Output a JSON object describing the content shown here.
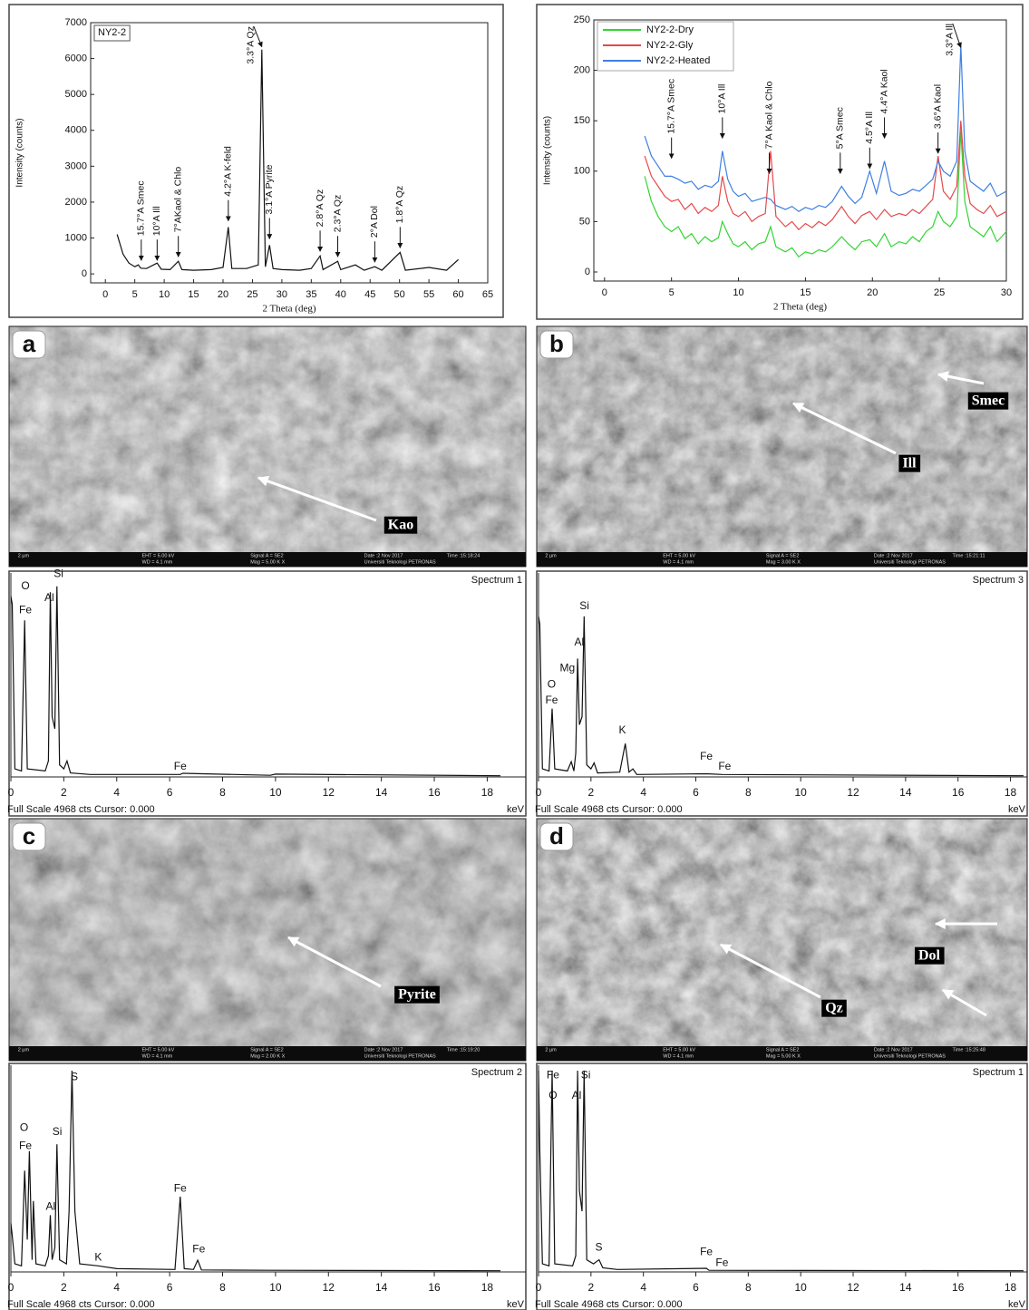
{
  "chart_data": [
    {
      "type": "line",
      "ylabel": "Intensity (counts)",
      "xlabel": "2 Theta (deg)",
      "xlim": [
        -2.5,
        65
      ],
      "ylim": [
        -250,
        7000
      ],
      "xticks": [
        0,
        5,
        10,
        15,
        20,
        25,
        30,
        35,
        40,
        45,
        50,
        55,
        60,
        65
      ],
      "yticks": [
        0,
        1000,
        2000,
        3000,
        4000,
        5000,
        6000,
        7000
      ],
      "x": [
        2,
        3,
        4,
        5,
        5.6,
        6,
        7,
        8.8,
        9.5,
        11,
        12.4,
        13,
        15,
        18,
        20,
        20.9,
        21.5,
        24,
        26,
        26.6,
        27.2,
        27.9,
        28.5,
        30,
        33,
        35,
        36.5,
        37,
        39.5,
        40,
        42.5,
        44,
        45.8,
        47,
        50.1,
        51,
        55,
        58,
        60
      ],
      "series": [
        {
          "name": "NY2-2",
          "color": "#111111",
          "values": [
            1100,
            550,
            300,
            200,
            250,
            160,
            150,
            300,
            130,
            120,
            350,
            120,
            100,
            120,
            180,
            1300,
            150,
            150,
            250,
            6250,
            200,
            800,
            150,
            120,
            100,
            150,
            500,
            120,
            350,
            120,
            250,
            100,
            200,
            100,
            600,
            100,
            180,
            100,
            400
          ]
        }
      ],
      "annotations": [
        {
          "text": "15.7°A Smec",
          "x": 6.1,
          "y": 300
        },
        {
          "text": "10°A Ill",
          "x": 8.8,
          "y": 300
        },
        {
          "text": "7°AKaol & Chlo",
          "x": 12.4,
          "y": 400
        },
        {
          "text": "4.2°A K-feld",
          "x": 20.9,
          "y": 1400
        },
        {
          "text": "3.3°A Qz",
          "x": 26.6,
          "y": 6250
        },
        {
          "text": "3.1°A Pyrite",
          "x": 27.9,
          "y": 900
        },
        {
          "text": "2.8°A Qz",
          "x": 36.5,
          "y": 550
        },
        {
          "text": "2.3°A Qz",
          "x": 39.5,
          "y": 400
        },
        {
          "text": "2°A Dol",
          "x": 45.8,
          "y": 250
        },
        {
          "text": "1.8°A Qz",
          "x": 50.1,
          "y": 650
        }
      ]
    },
    {
      "type": "line",
      "ylabel": "Intensity (counts)",
      "xlabel": "2 Theta (deg)",
      "xlim": [
        -0.8,
        30
      ],
      "ylim": [
        -9,
        250
      ],
      "xticks": [
        0,
        5,
        10,
        15,
        20,
        25,
        30
      ],
      "yticks": [
        0,
        50,
        100,
        150,
        200,
        250
      ],
      "x": [
        3,
        3.5,
        4,
        4.5,
        5,
        5.5,
        6,
        6.5,
        7,
        7.5,
        8,
        8.5,
        8.8,
        9.2,
        9.6,
        10,
        10.5,
        11,
        11.5,
        12,
        12.4,
        12.8,
        13.5,
        14,
        14.5,
        15,
        15.5,
        16,
        16.5,
        17,
        17.7,
        18.2,
        18.7,
        19.2,
        19.8,
        20.3,
        20.9,
        21.4,
        22,
        22.5,
        23,
        23.5,
        24,
        24.5,
        24.9,
        25.3,
        25.8,
        26.3,
        26.6,
        26.9,
        27.3,
        27.8,
        28.3,
        28.8,
        29.3,
        30
      ],
      "series": [
        {
          "name": "NY2-2-Dry",
          "color": "#33d433",
          "values": [
            95,
            70,
            55,
            45,
            40,
            45,
            33,
            38,
            28,
            35,
            30,
            34,
            50,
            38,
            28,
            25,
            30,
            22,
            28,
            30,
            45,
            25,
            20,
            24,
            15,
            20,
            18,
            22,
            20,
            25,
            35,
            28,
            22,
            30,
            32,
            25,
            38,
            25,
            30,
            28,
            35,
            30,
            40,
            45,
            60,
            50,
            45,
            55,
            140,
            70,
            45,
            40,
            35,
            45,
            30,
            40
          ]
        },
        {
          "name": "NY2-2-Gly",
          "color": "#e5484b",
          "values": [
            115,
            95,
            85,
            75,
            70,
            72,
            62,
            68,
            58,
            64,
            60,
            66,
            95,
            70,
            58,
            55,
            60,
            50,
            55,
            58,
            120,
            55,
            45,
            50,
            42,
            48,
            44,
            50,
            46,
            52,
            65,
            55,
            48,
            56,
            60,
            52,
            62,
            55,
            58,
            56,
            62,
            58,
            65,
            72,
            115,
            80,
            72,
            85,
            150,
            95,
            68,
            62,
            58,
            66,
            55,
            60
          ]
        },
        {
          "name": "NY2-2-Heated",
          "color": "#3f7fe0",
          "values": [
            135,
            115,
            105,
            95,
            95,
            92,
            88,
            90,
            82,
            86,
            84,
            90,
            120,
            92,
            80,
            75,
            78,
            70,
            72,
            74,
            72,
            66,
            62,
            65,
            60,
            64,
            62,
            66,
            64,
            70,
            85,
            75,
            68,
            74,
            100,
            78,
            110,
            80,
            76,
            78,
            82,
            80,
            86,
            92,
            110,
            100,
            95,
            110,
            225,
            120,
            90,
            85,
            80,
            88,
            75,
            80
          ]
        }
      ],
      "annotations": [
        {
          "text": "15.7°A Smec",
          "x": 5,
          "y": 110
        },
        {
          "text": "10°A Ill",
          "x": 8.8,
          "y": 130
        },
        {
          "text": "7°A Kaol & Chlo",
          "x": 12.3,
          "y": 95
        },
        {
          "text": "5°A Smec",
          "x": 17.6,
          "y": 95
        },
        {
          "text": "4.5°A Ill",
          "x": 19.8,
          "y": 100
        },
        {
          "text": "4.4°A Kaol",
          "x": 20.9,
          "y": 130
        },
        {
          "text": "3.6°A Kaol",
          "x": 24.9,
          "y": 115
        },
        {
          "text": "3.3°A Ill",
          "x": 26.6,
          "y": 220
        }
      ]
    },
    {
      "type": "spectrum",
      "title": "Spectrum 1",
      "xlabel": "keV",
      "footer": "Full Scale 4968 cts Cursor: 0.000",
      "xlim": [
        0,
        18.5
      ],
      "ylim": [
        0,
        4968
      ],
      "xticks": [
        0,
        2,
        4,
        6,
        8,
        10,
        12,
        14,
        16,
        18
      ],
      "x": [
        0,
        0.05,
        0.15,
        0.4,
        0.52,
        0.62,
        1.3,
        1.42,
        1.49,
        1.56,
        1.66,
        1.74,
        1.84,
        2.0,
        2.12,
        2.25,
        3,
        6.4,
        6.5,
        9.8,
        10,
        18.5
      ],
      "values": [
        4500,
        4300,
        200,
        150,
        3900,
        200,
        150,
        400,
        4600,
        1500,
        1200,
        4750,
        300,
        200,
        400,
        100,
        60,
        60,
        90,
        40,
        70,
        30
      ],
      "annotations": [
        {
          "text": "O",
          "x": 0.55,
          "y": 4750
        },
        {
          "text": "Si",
          "x": 1.8,
          "y": 5050
        },
        {
          "text": "Al",
          "x": 1.45,
          "y": 4450
        },
        {
          "text": "Fe",
          "x": 0.55,
          "y": 4150
        },
        {
          "text": "Fe",
          "x": 6.4,
          "y": 250
        }
      ]
    },
    {
      "type": "spectrum",
      "title": "Spectrum 3",
      "xlabel": "keV",
      "footer": "Full Scale 4968 cts Cursor: 0.000",
      "xlim": [
        0,
        18.5
      ],
      "ylim": [
        0,
        4968
      ],
      "xticks": [
        0,
        2,
        4,
        6,
        8,
        10,
        12,
        14,
        16,
        18
      ],
      "x": [
        0,
        0.05,
        0.15,
        0.4,
        0.52,
        0.62,
        1.1,
        1.25,
        1.35,
        1.42,
        1.49,
        1.56,
        1.66,
        1.74,
        1.84,
        2.0,
        2.12,
        2.25,
        3.1,
        3.31,
        3.45,
        3.6,
        3.75,
        6.4,
        7.0,
        18.5
      ],
      "values": [
        4000,
        3800,
        200,
        150,
        1700,
        200,
        150,
        380,
        150,
        600,
        2950,
        1300,
        1500,
        4000,
        300,
        200,
        350,
        100,
        120,
        830,
        120,
        200,
        60,
        80,
        60,
        30
      ],
      "annotations": [
        {
          "text": "Si",
          "x": 1.75,
          "y": 4250
        },
        {
          "text": "Al",
          "x": 1.55,
          "y": 3350
        },
        {
          "text": "Mg",
          "x": 1.1,
          "y": 2700
        },
        {
          "text": "O",
          "x": 0.5,
          "y": 2300
        },
        {
          "text": "Fe",
          "x": 0.5,
          "y": 1900
        },
        {
          "text": "K",
          "x": 3.2,
          "y": 1150
        },
        {
          "text": "Fe",
          "x": 6.4,
          "y": 500
        },
        {
          "text": "Fe",
          "x": 7.1,
          "y": 250
        }
      ]
    },
    {
      "type": "spectrum",
      "title": "Spectrum 2",
      "xlabel": "keV",
      "footer": "Full Scale 4968 cts Cursor: 0.000",
      "xlim": [
        0,
        18.5
      ],
      "ylim": [
        0,
        4968
      ],
      "xticks": [
        0,
        2,
        4,
        6,
        8,
        10,
        12,
        14,
        16,
        18
      ],
      "x": [
        0,
        0.05,
        0.15,
        0.4,
        0.52,
        0.62,
        0.7,
        0.8,
        0.85,
        0.95,
        1.3,
        1.42,
        1.49,
        1.56,
        1.66,
        1.74,
        1.84,
        2.1,
        2.2,
        2.31,
        2.42,
        2.6,
        3.3,
        4,
        6.2,
        6.4,
        6.55,
        6.9,
        7.06,
        7.2,
        9.8,
        18.5
      ],
      "values": [
        1200,
        900,
        200,
        150,
        2500,
        800,
        2980,
        300,
        1750,
        200,
        150,
        400,
        1400,
        300,
        600,
        3150,
        300,
        200,
        1500,
        4968,
        1500,
        200,
        150,
        80,
        60,
        1860,
        80,
        60,
        290,
        50,
        40,
        30
      ],
      "annotations": [
        {
          "text": "S",
          "x": 2.4,
          "y": 4800
        },
        {
          "text": "O",
          "x": 0.5,
          "y": 3550
        },
        {
          "text": "Fe",
          "x": 0.55,
          "y": 3100
        },
        {
          "text": "Si",
          "x": 1.75,
          "y": 3450
        },
        {
          "text": "Al",
          "x": 1.5,
          "y": 1600
        },
        {
          "text": "K",
          "x": 3.3,
          "y": 350
        },
        {
          "text": "Fe",
          "x": 6.4,
          "y": 2050
        },
        {
          "text": "Fe",
          "x": 7.1,
          "y": 550
        }
      ]
    },
    {
      "type": "spectrum",
      "title": "Spectrum 1",
      "xlabel": "keV",
      "footer": "Full Scale 4968 cts Cursor: 0.000",
      "xlim": [
        0,
        18.5
      ],
      "ylim": [
        0,
        4968
      ],
      "xticks": [
        0,
        2,
        4,
        6,
        8,
        10,
        12,
        14,
        16,
        18
      ],
      "x": [
        0,
        0.05,
        0.15,
        0.4,
        0.52,
        0.62,
        1.3,
        1.42,
        1.49,
        1.56,
        1.66,
        1.74,
        1.84,
        2.1,
        2.2,
        2.31,
        2.45,
        3,
        6.4,
        6.5,
        18.5
      ],
      "values": [
        4968,
        3000,
        200,
        150,
        4968,
        200,
        150,
        400,
        4968,
        2000,
        1500,
        4968,
        300,
        200,
        250,
        300,
        100,
        60,
        90,
        40,
        30
      ],
      "annotations": [
        {
          "text": "Fe",
          "x": 0.55,
          "y": 4850
        },
        {
          "text": "Si",
          "x": 1.8,
          "y": 4850
        },
        {
          "text": "O",
          "x": 0.55,
          "y": 4350
        },
        {
          "text": "Al",
          "x": 1.45,
          "y": 4350
        },
        {
          "text": "S",
          "x": 2.3,
          "y": 600
        },
        {
          "text": "Fe",
          "x": 6.4,
          "y": 480
        },
        {
          "text": "Fe",
          "x": 7.0,
          "y": 220
        }
      ]
    }
  ],
  "images": [
    {
      "panel": "a",
      "labels": [
        "Kao"
      ],
      "info": [
        "2 µm",
        "EHT = 5.00 kV",
        "WD = 4.1 mm",
        "Signal A = SE2",
        "Mag = 5.00 K X",
        "Date :2 Nov 2017",
        "Time :15:18:24",
        "Universiti Teknologi PETRONAS"
      ]
    },
    {
      "panel": "b",
      "labels": [
        "Smec",
        "Ill"
      ],
      "info": [
        "2 µm",
        "EHT = 5.00 kV",
        "WD = 4.1 mm",
        "Signal A = SE2",
        "Mag = 3.00 K X",
        "Date :2 Nov 2017",
        "Time :15:21:11",
        "Universiti Teknologi PETRONAS"
      ]
    },
    {
      "panel": "c",
      "labels": [
        "Pyrite"
      ],
      "info": [
        "2 µm",
        "EHT = 5.00 kV",
        "WD = 4.1 mm",
        "Signal A = SE2",
        "Mag = 2.00 K X",
        "Date :2 Nov 2017",
        "Time :15:19:20",
        "Universiti Teknologi PETRONAS"
      ]
    },
    {
      "panel": "d",
      "labels": [
        "Qz",
        "Dol"
      ],
      "info": [
        "2 µm",
        "EHT = 5.00 kV",
        "WD = 4.1 mm",
        "Signal A = SE2",
        "Mag = 5.00 K X",
        "Date :2 Nov 2017",
        "Time :15:25:48",
        "Universiti Teknologi PETRONAS"
      ]
    }
  ]
}
